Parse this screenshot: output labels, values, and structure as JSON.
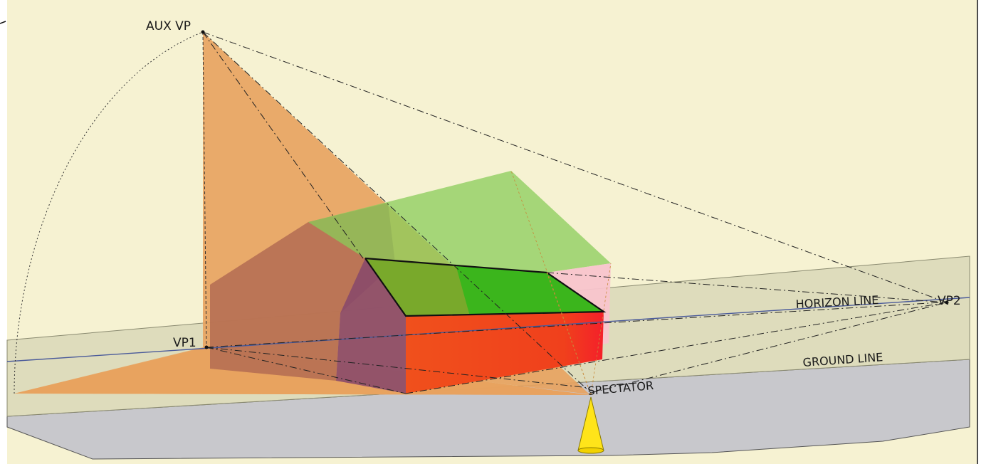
{
  "labels": {
    "aux_vp": "AUX VP",
    "vp1": "VP1",
    "vp2": "VP2",
    "horizon_line": "HORIZON LINE",
    "ground_line": "GROUND LINE",
    "spectator": "SPECTATOR"
  },
  "colors": {
    "background_sky": "#f6f2d2",
    "picture_plane": "#dcdabb",
    "ground": "#c8c8cc",
    "aux_triangle": "#e8a25e",
    "house_back": "#b8704e",
    "roof_ghost": "#86c850",
    "roof_front": "#3db51e",
    "front_wall": "#f0461c",
    "end_wall": "#8a4a6a",
    "pink_end": "#f8c4cc",
    "spectator_cone": "#ffe41a",
    "horizon_line": "#4a5a9a"
  }
}
